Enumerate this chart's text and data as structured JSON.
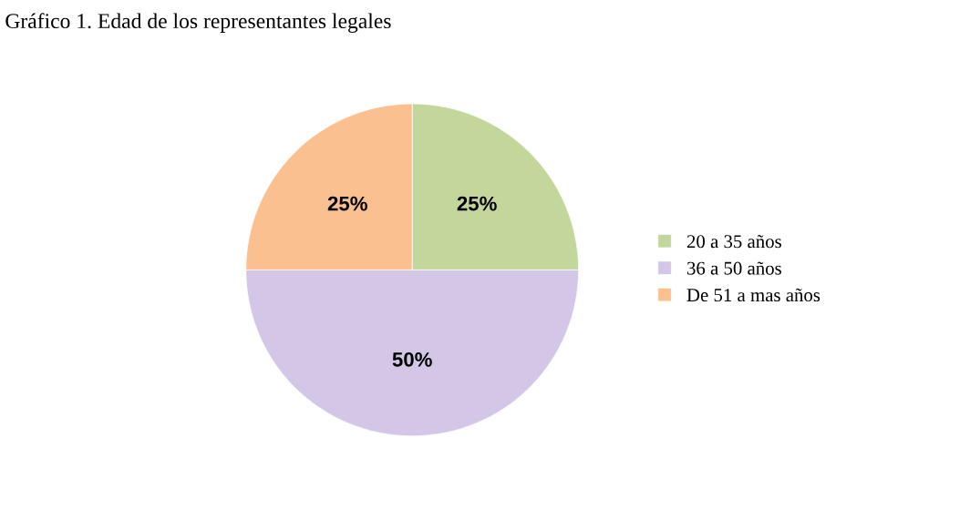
{
  "chart_data": {
    "type": "pie",
    "title": "Gráfico 1. Edad de los representantes legales",
    "categories": [
      "20 a 35 años",
      "36 a 50 años",
      "De 51 a mas años"
    ],
    "values": [
      25,
      50,
      25
    ],
    "colors": [
      "#c3d69b",
      "#d3c6e6",
      "#fac090"
    ],
    "value_labels": [
      "25%",
      "50%",
      "25%"
    ],
    "legend": "right"
  }
}
